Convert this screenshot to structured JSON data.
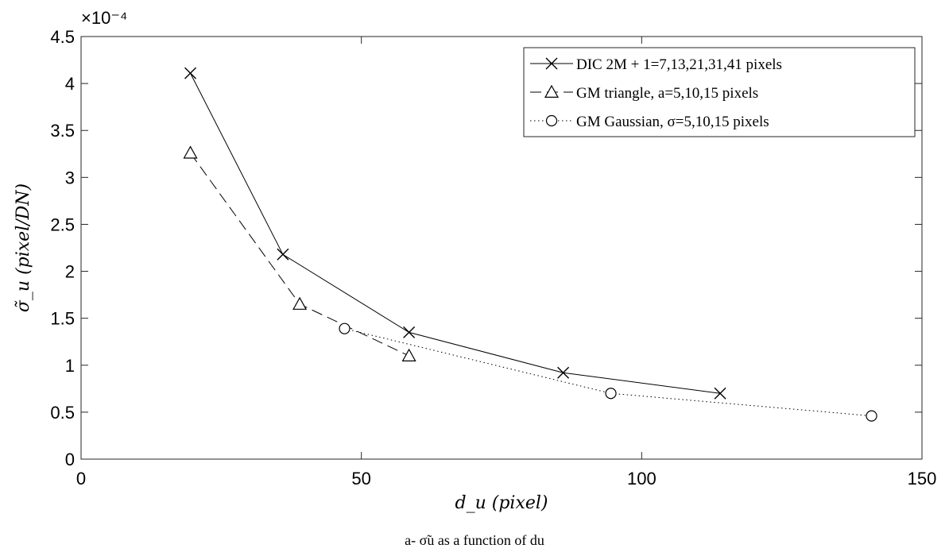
{
  "chart_data": {
    "type": "line",
    "xlabel": "d_u (pixel)",
    "ylabel": "σ̃_u (pixel/DN)",
    "y_multiplier": "×10⁻⁴",
    "xlim": [
      0,
      150
    ],
    "ylim": [
      0,
      4.5
    ],
    "x_ticks": [
      0,
      50,
      100,
      150
    ],
    "y_ticks": [
      0,
      0.5,
      1,
      1.5,
      2,
      2.5,
      3,
      3.5,
      4,
      4.5
    ],
    "grid": false,
    "legend_position": "top-right",
    "series": [
      {
        "name": "DIC 2M + 1=7,13,21,31,41 pixels",
        "marker": "x",
        "line_style": "solid",
        "x": [
          19.5,
          36,
          58.5,
          86,
          114
        ],
        "y": [
          4.11,
          2.18,
          1.35,
          0.92,
          0.7
        ]
      },
      {
        "name": "GM triangle, a=5,10,15 pixels",
        "marker": "triangle",
        "line_style": "dashed",
        "x": [
          19.5,
          39,
          58.5
        ],
        "y": [
          3.26,
          1.65,
          1.1
        ]
      },
      {
        "name": "GM Gaussian, σ=5,10,15 pixels",
        "marker": "circle",
        "line_style": "dotted",
        "x": [
          47,
          94.5,
          141
        ],
        "y": [
          1.39,
          0.7,
          0.46
        ]
      }
    ]
  },
  "caption": "a- σ̃u as a function of du"
}
